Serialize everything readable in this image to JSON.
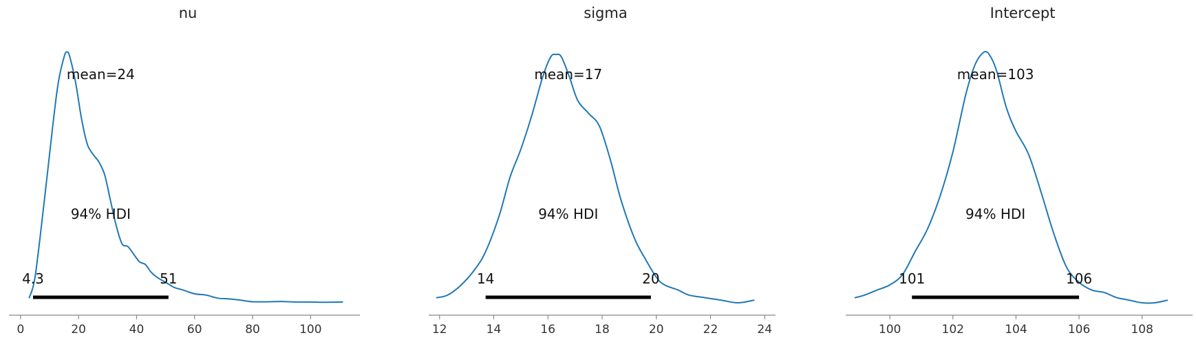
{
  "chart_data": [
    {
      "type": "line",
      "title": "nu",
      "color": "#1f77b4",
      "xlim": [
        -4,
        117
      ],
      "ticks": [
        0,
        20,
        40,
        60,
        80,
        100
      ],
      "mean_label": "mean=24",
      "hdi_label": "94% HDI",
      "hdi": [
        4.3,
        51
      ],
      "hdi_low_label": "4.3",
      "hdi_high_label": "51",
      "density": {
        "x": [
          3,
          5,
          8,
          11,
          13,
          15,
          16,
          17,
          19,
          21,
          23,
          25,
          27,
          29,
          31,
          33,
          35,
          37,
          39,
          41,
          43,
          45,
          47,
          50,
          53,
          56,
          60,
          64,
          68,
          72,
          76,
          80,
          86,
          90,
          95,
          100,
          105,
          111
        ],
        "y": [
          0.02,
          0.1,
          0.38,
          0.68,
          0.86,
          0.96,
          0.98,
          0.96,
          0.86,
          0.72,
          0.62,
          0.58,
          0.55,
          0.5,
          0.4,
          0.3,
          0.23,
          0.22,
          0.19,
          0.16,
          0.15,
          0.12,
          0.1,
          0.08,
          0.06,
          0.05,
          0.035,
          0.03,
          0.018,
          0.015,
          0.01,
          0.004,
          0.004,
          0.005,
          0.003,
          0.003,
          0.002,
          0.003
        ]
      }
    },
    {
      "type": "line",
      "title": "sigma",
      "color": "#1f77b4",
      "xlim": [
        11.6,
        24.4
      ],
      "ticks": [
        12,
        14,
        16,
        18,
        20,
        22,
        24
      ],
      "mean_label": "mean=17",
      "hdi_label": "94% HDI",
      "hdi": [
        13.7,
        19.8
      ],
      "hdi_low_label": "14",
      "hdi_high_label": "20",
      "density": {
        "x": [
          11.9,
          12.3,
          12.8,
          13.3,
          13.7,
          14.2,
          14.6,
          15.0,
          15.4,
          15.8,
          16.1,
          16.3,
          16.5,
          16.8,
          17.1,
          17.5,
          17.9,
          18.3,
          18.7,
          19.2,
          19.6,
          20.0,
          20.3,
          20.8,
          21.2,
          21.8,
          22.4,
          23.0,
          23.6
        ],
        "y": [
          0.02,
          0.03,
          0.07,
          0.13,
          0.2,
          0.34,
          0.49,
          0.6,
          0.73,
          0.88,
          0.96,
          0.97,
          0.96,
          0.88,
          0.79,
          0.74,
          0.69,
          0.56,
          0.4,
          0.25,
          0.17,
          0.1,
          0.07,
          0.05,
          0.03,
          0.02,
          0.01,
          0.0,
          0.01
        ]
      }
    },
    {
      "type": "line",
      "title": "Intercept",
      "color": "#1f77b4",
      "xlim": [
        98.6,
        109.6
      ],
      "ticks": [
        100,
        102,
        104,
        106,
        108
      ],
      "mean_label": "mean=103",
      "hdi_label": "94% HDI",
      "hdi": [
        100.7,
        106.0
      ],
      "hdi_low_label": "101",
      "hdi_high_label": "106",
      "density": {
        "x": [
          98.9,
          99.2,
          99.6,
          100.0,
          100.4,
          100.8,
          101.2,
          101.6,
          102.0,
          102.4,
          102.7,
          103.0,
          103.2,
          103.4,
          103.7,
          104.0,
          104.4,
          104.8,
          105.2,
          105.6,
          106.0,
          106.4,
          106.8,
          107.2,
          107.6,
          108.0,
          108.4,
          108.8
        ],
        "y": [
          0.02,
          0.03,
          0.05,
          0.07,
          0.11,
          0.2,
          0.29,
          0.42,
          0.59,
          0.81,
          0.93,
          0.98,
          0.96,
          0.9,
          0.76,
          0.67,
          0.58,
          0.43,
          0.27,
          0.14,
          0.08,
          0.05,
          0.04,
          0.02,
          0.01,
          0.0,
          0.0,
          0.01
        ]
      }
    }
  ]
}
